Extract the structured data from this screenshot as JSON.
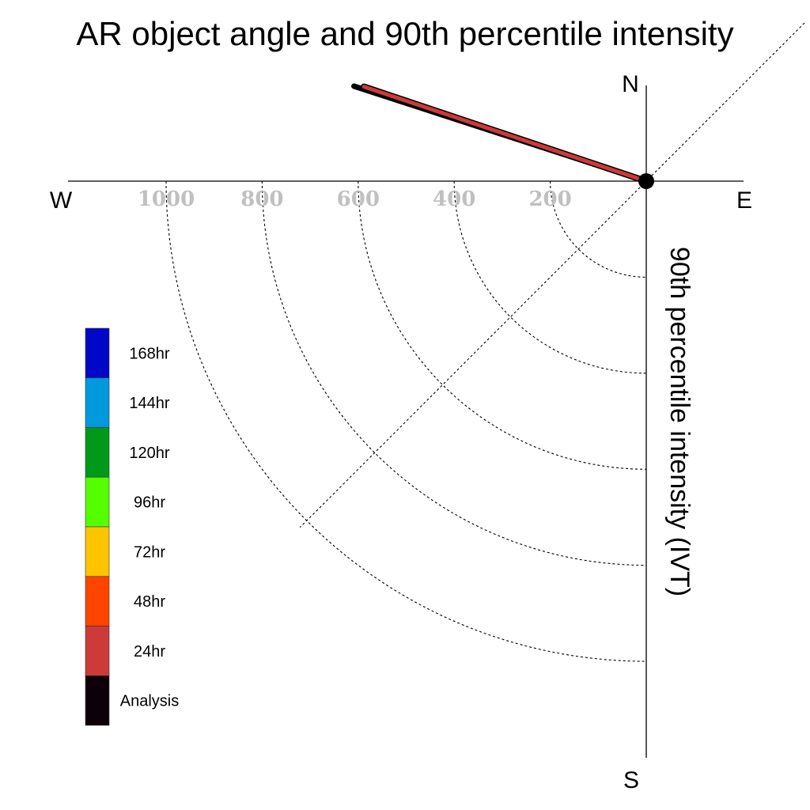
{
  "chart_data": {
    "type": "polar-vector",
    "title": "AR object angle and 90th percentile intensity",
    "radial_axis_label": "90th percentile intensity (IVT)",
    "compass": {
      "north": "N",
      "south": "S",
      "east": "E",
      "west": "W"
    },
    "radial_ticks": [
      200,
      400,
      600,
      800,
      1000
    ],
    "radial_tick_labels": [
      "200",
      "400",
      "600",
      "800",
      "1000"
    ],
    "rmax": 1200,
    "series": [
      {
        "name": "Analysis",
        "angle_deg_ccw_from_east": 162,
        "intensity": 640,
        "color": "#0d0008"
      },
      {
        "name": "24hr",
        "angle_deg_ccw_from_east": 161.5,
        "intensity": 620,
        "color": "#cc3a3a"
      }
    ],
    "legend": {
      "items": [
        {
          "label": "168hr",
          "color": "#0008c8"
        },
        {
          "label": "144hr",
          "color": "#0099dd"
        },
        {
          "label": "120hr",
          "color": "#00991a"
        },
        {
          "label": "96hr",
          "color": "#55ff00"
        },
        {
          "label": "72hr",
          "color": "#ffc400"
        },
        {
          "label": "48hr",
          "color": "#ff4400"
        },
        {
          "label": "24hr",
          "color": "#cc3a3a"
        },
        {
          "label": "Analysis",
          "color": "#0d0008"
        }
      ]
    }
  }
}
